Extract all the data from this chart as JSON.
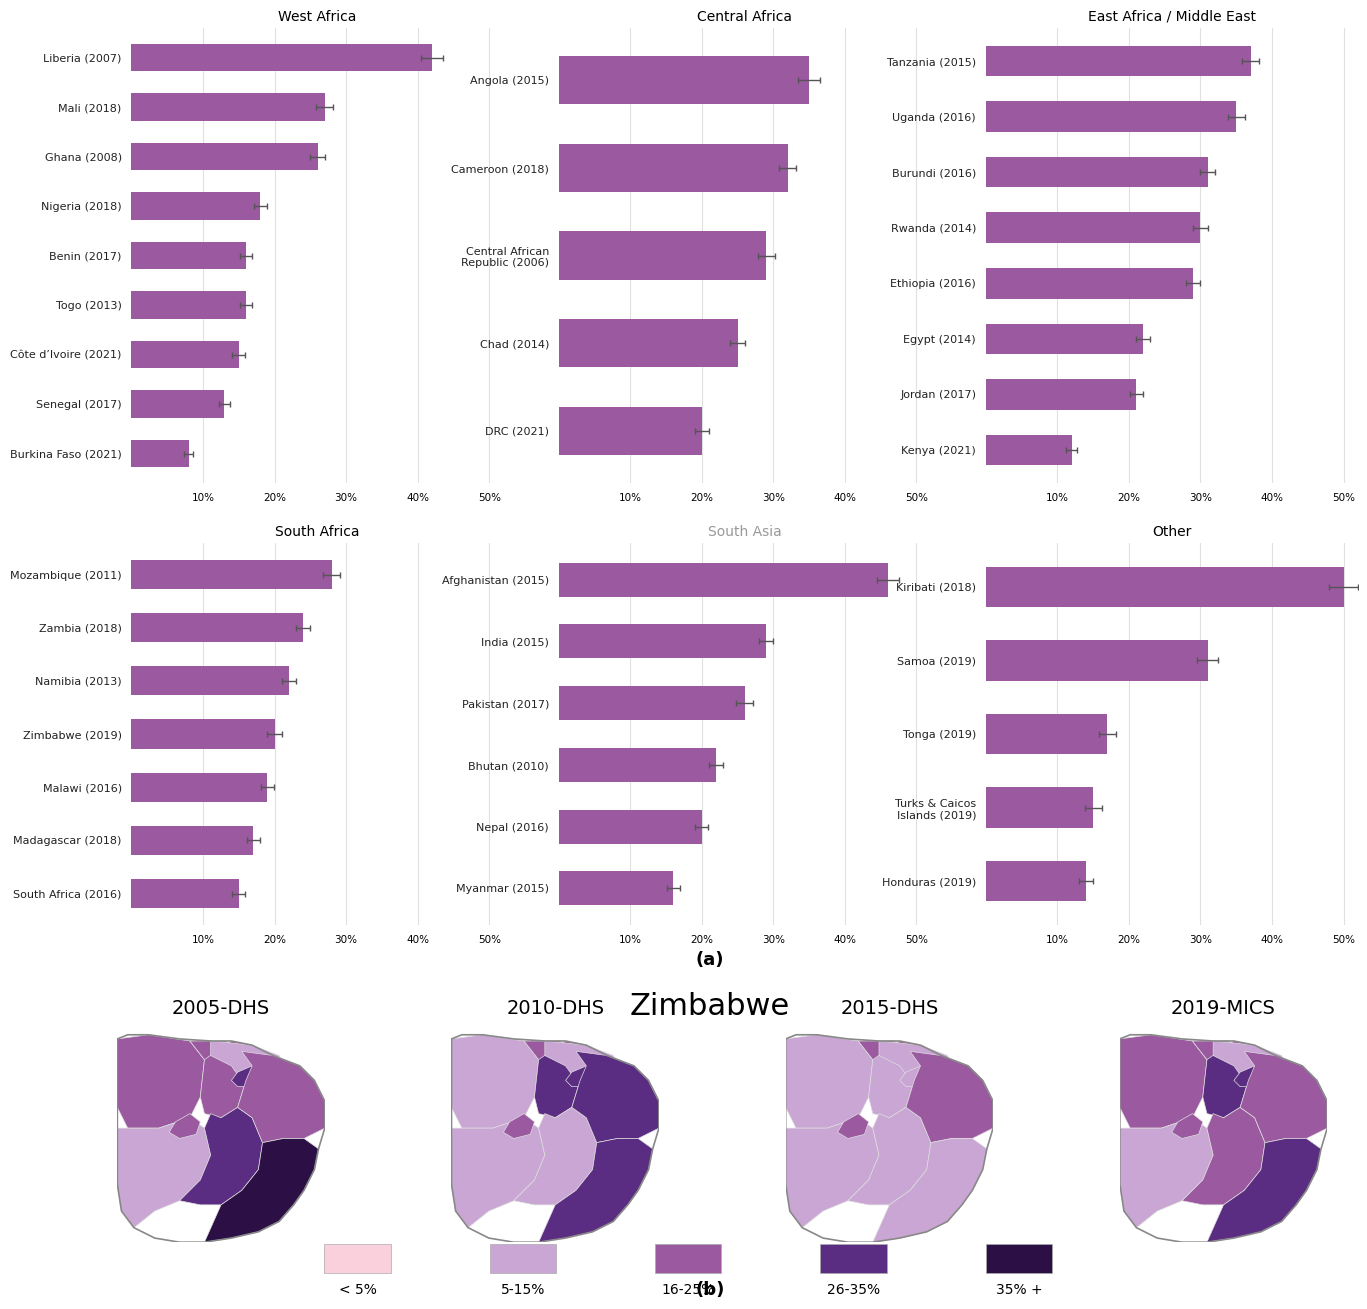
{
  "bar_color": "#9B59A0",
  "error_color": "#555555",
  "background_color": "#ffffff",
  "bar_height": 0.55,
  "panels": {
    "west_africa": {
      "title": "West Africa",
      "title_color": "#000000",
      "countries": [
        "Liberia (2007)",
        "Mali (2018)",
        "Ghana (2008)",
        "Nigeria (2018)",
        "Benin (2017)",
        "Togo (2013)",
        "Côte d’Ivoire (2021)",
        "Senegal (2017)",
        "Burkina Faso (2021)"
      ],
      "values": [
        42,
        27,
        26,
        18,
        16,
        16,
        15,
        13,
        8
      ],
      "errors": [
        1.5,
        1.2,
        1.0,
        0.9,
        0.8,
        0.8,
        0.9,
        0.8,
        0.6
      ]
    },
    "central_africa": {
      "title": "Central Africa",
      "title_color": "#000000",
      "countries": [
        "Angola (2015)",
        "Cameroon (2018)",
        "Central African\nRepublic (2006)",
        "Chad (2014)",
        "DRC (2021)"
      ],
      "values": [
        35,
        32,
        29,
        25,
        20
      ],
      "errors": [
        1.5,
        1.2,
        1.2,
        1.0,
        1.0
      ]
    },
    "east_africa": {
      "title": "East Africa / Middle East",
      "title_color": "#000000",
      "countries": [
        "Tanzania (2015)",
        "Uganda (2016)",
        "Burundi (2016)",
        "Rwanda (2014)",
        "Ethiopia (2016)",
        "Egypt (2014)",
        "Jordan (2017)",
        "Kenya (2021)"
      ],
      "values": [
        37,
        35,
        31,
        30,
        29,
        22,
        21,
        12
      ],
      "errors": [
        1.2,
        1.2,
        1.0,
        1.0,
        1.0,
        1.0,
        0.9,
        0.8
      ]
    },
    "south_africa": {
      "title": "South Africa",
      "title_color": "#000000",
      "countries": [
        "Mozambique (2011)",
        "Zambia (2018)",
        "Namibia (2013)",
        "Zimbabwe (2019)",
        "Malawi (2016)",
        "Madagascar (2018)",
        "South Africa (2016)"
      ],
      "values": [
        28,
        24,
        22,
        20,
        19,
        17,
        15
      ],
      "errors": [
        1.2,
        1.0,
        1.0,
        1.0,
        0.9,
        0.9,
        0.9
      ]
    },
    "south_asia": {
      "title": "South Asia",
      "title_color": "#999999",
      "countries": [
        "Afghanistan (2015)",
        "India (2015)",
        "Pakistan (2017)",
        "Bhutan (2010)",
        "Nepal (2016)",
        "Myanmar (2015)"
      ],
      "values": [
        46,
        29,
        26,
        22,
        20,
        16
      ],
      "errors": [
        1.5,
        1.0,
        1.2,
        1.0,
        0.9,
        0.9
      ]
    },
    "other": {
      "title": "Other",
      "title_color": "#000000",
      "countries": [
        "Kiribati (2018)",
        "Samoa (2019)",
        "Tonga (2019)",
        "Turks & Caicos\nIslands (2019)",
        "Honduras (2019)"
      ],
      "values": [
        50,
        31,
        17,
        15,
        14
      ],
      "errors": [
        2.0,
        1.5,
        1.2,
        1.2,
        1.0
      ]
    }
  },
  "legend_colors": [
    "#F9D0DC",
    "#C9A6D4",
    "#9B59A0",
    "#5B2D82",
    "#2C1045"
  ],
  "legend_labels": [
    "< 5%",
    "5-15%",
    "16-25%",
    "26-35%",
    "35% +"
  ],
  "map_title": "Zimbabwe",
  "map_subtitles": [
    "2005-DHS",
    "2010-DHS",
    "2015-DHS",
    "2019-MICS"
  ],
  "panel_b_label": "(b)",
  "panel_a_label": "(a)"
}
